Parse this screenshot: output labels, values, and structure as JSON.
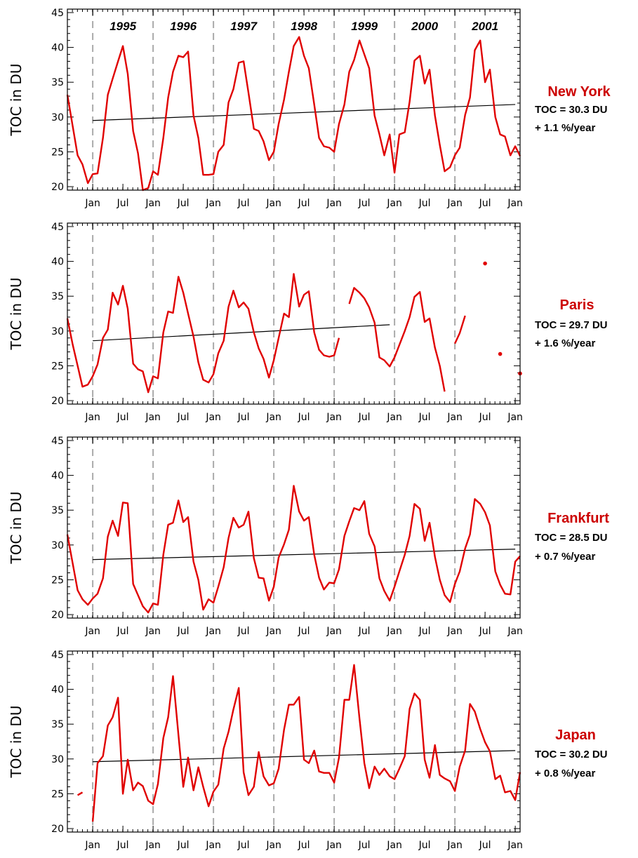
{
  "chart_data": [
    {
      "type": "line",
      "station": "New York",
      "stat_toc": "TOC = 30.3 DU",
      "stat_trend": "+ 1.1 %/year",
      "ylabel": "TOC in DU",
      "ylim": [
        19.5,
        45.5
      ],
      "yticks": [
        20,
        25,
        30,
        35,
        40,
        45
      ],
      "xlim": [
        1994.58,
        2002.08
      ],
      "year_labels": [
        "1995",
        "1996",
        "1997",
        "1998",
        "1999",
        "2000",
        "2001"
      ],
      "xtick_labels": [
        "Jan",
        "Jul",
        "Jan",
        "Jul",
        "Jan",
        "Jul",
        "Jan",
        "Jul",
        "Jan",
        "Jul",
        "Jan",
        "Jul",
        "Jan",
        "Jul",
        "Jan"
      ],
      "line_color": "#e00000",
      "trend": {
        "x": [
          1995.0,
          2002.0
        ],
        "y": [
          29.5,
          31.8
        ]
      },
      "segments": [
        {
          "x": [
            1994.58,
            1994.75,
            1994.83,
            1994.92,
            1995.0,
            1995.08,
            1995.17,
            1995.25,
            1995.33,
            1995.42,
            1995.5,
            1995.58,
            1995.67,
            1995.75,
            1995.83,
            1995.92,
            1996.0,
            1996.08,
            1996.17,
            1996.25,
            1996.33,
            1996.42,
            1996.5,
            1996.58,
            1996.67,
            1996.75,
            1996.83,
            1996.92,
            1997.0,
            1997.08,
            1997.17,
            1997.25,
            1997.33,
            1997.42,
            1997.5,
            1997.58,
            1997.67,
            1997.75,
            1997.83,
            1997.92,
            1998.0,
            1998.08,
            1998.17,
            1998.25,
            1998.33,
            1998.42,
            1998.5,
            1998.58,
            1998.67,
            1998.75,
            1998.83,
            1998.92,
            1999.0,
            1999.08,
            1999.17,
            1999.25,
            1999.33,
            1999.42,
            1999.5,
            1999.58,
            1999.67,
            1999.75,
            1999.83,
            1999.92,
            2000.0,
            2000.08,
            2000.17,
            2000.25,
            2000.33,
            2000.42,
            2000.5,
            2000.58,
            2000.67,
            2000.75,
            2000.83,
            2000.92,
            2001.0,
            2001.08,
            2001.17,
            2001.25,
            2001.33,
            2001.42,
            2001.5,
            2001.58,
            2001.67,
            2001.75,
            2001.83,
            2001.92,
            2002.0,
            2002.08
          ],
          "y": [
            33.2,
            24.5,
            23.2,
            20.5,
            21.8,
            21.9,
            27.0,
            33.2,
            35.5,
            38.0,
            40.2,
            36.2,
            28.0,
            24.8,
            19.5,
            19.8,
            22.2,
            21.7,
            27.0,
            32.8,
            36.5,
            38.8,
            38.6,
            39.4,
            30.2,
            27.0,
            21.7,
            21.7,
            21.8,
            25.0,
            26.0,
            32.1,
            34.0,
            37.8,
            38.0,
            33.5,
            28.3,
            28.0,
            26.5,
            23.8,
            25.0,
            29.0,
            32.5,
            36.5,
            40.2,
            41.5,
            38.8,
            37.0,
            31.8,
            27.0,
            25.8,
            25.6,
            25.0,
            29.0,
            31.8,
            36.5,
            38.2,
            41.0,
            39.0,
            37.0,
            30.2,
            27.5,
            24.5,
            27.5,
            22.0,
            27.5,
            27.8,
            32.2,
            38.1,
            38.8,
            34.8,
            36.8,
            30.2,
            26.0,
            22.2,
            22.8,
            24.5,
            25.6,
            30.3,
            32.8,
            39.6,
            41.0,
            35.0,
            36.8,
            30.0,
            27.5,
            27.2,
            24.5,
            25.8,
            24.4
          ]
        }
      ],
      "points": []
    },
    {
      "type": "line",
      "station": "Paris",
      "stat_toc": "TOC = 29.7 DU",
      "stat_trend": "+ 1.6 %/year",
      "ylabel": "TOC in DU",
      "ylim": [
        19.5,
        45.5
      ],
      "yticks": [
        20,
        25,
        30,
        35,
        40,
        45
      ],
      "xlim": [
        1994.58,
        2002.08
      ],
      "xtick_labels": [
        "Jan",
        "Jul",
        "Jan",
        "Jul",
        "Jan",
        "Jul",
        "Jan",
        "Jul",
        "Jan",
        "Jul",
        "Jan",
        "Jul",
        "Jan",
        "Jul",
        "Jan"
      ],
      "line_color": "#e00000",
      "trend": {
        "x": [
          1995.0,
          1999.92
        ],
        "y": [
          28.6,
          30.9
        ]
      },
      "segments": [
        {
          "x": [
            1994.58,
            1994.67,
            1994.75,
            1994.83,
            1994.92,
            1995.0,
            1995.08,
            1995.17,
            1995.25,
            1995.33,
            1995.42,
            1995.5,
            1995.58,
            1995.67,
            1995.75,
            1995.83,
            1995.92,
            1996.0,
            1996.08,
            1996.17,
            1996.25,
            1996.33,
            1996.42,
            1996.5,
            1996.58,
            1996.67,
            1996.75,
            1996.83,
            1996.92,
            1997.0,
            1997.08,
            1997.17,
            1997.25,
            1997.33,
            1997.42,
            1997.5,
            1997.58,
            1997.67,
            1997.75,
            1997.83,
            1997.92,
            1998.0,
            1998.08,
            1998.17,
            1998.25,
            1998.33,
            1998.42,
            1998.5,
            1998.58,
            1998.67,
            1998.75,
            1998.83,
            1998.92,
            1999.0,
            1999.08
          ],
          "y": [
            31.8,
            28.0,
            25.0,
            22.0,
            22.3,
            23.5,
            25.2,
            29.0,
            30.2,
            35.5,
            33.8,
            36.5,
            33.2,
            25.3,
            24.5,
            24.2,
            21.2,
            23.5,
            23.2,
            29.8,
            32.8,
            32.6,
            37.8,
            35.5,
            32.5,
            29.2,
            25.5,
            23.0,
            22.6,
            23.8,
            26.8,
            28.6,
            33.5,
            35.8,
            33.4,
            34.1,
            33.2,
            29.8,
            27.5,
            26.0,
            23.3,
            25.8,
            29.0,
            32.5,
            32.0,
            38.2,
            33.5,
            35.2,
            35.7,
            29.8,
            27.3,
            26.5,
            26.3,
            26.5,
            29.0
          ]
        },
        {
          "x": [
            1999.25,
            1999.33,
            1999.42,
            1999.5,
            1999.58,
            1999.67,
            1999.75,
            1999.83,
            1999.92,
            2000.0,
            2000.08,
            2000.17,
            2000.25,
            2000.33,
            2000.42,
            2000.5,
            2000.58,
            2000.67,
            2000.75,
            2000.83
          ],
          "y": [
            33.9,
            36.2,
            35.5,
            34.7,
            33.4,
            31.2,
            26.2,
            25.8,
            24.9,
            26.2,
            28.0,
            30.0,
            32.0,
            34.9,
            35.6,
            31.3,
            31.8,
            27.6,
            25.0,
            21.3
          ]
        },
        {
          "x": [
            2001.0,
            2001.08,
            2001.17
          ],
          "y": [
            28.2,
            29.7,
            32.2
          ]
        }
      ],
      "points": [
        {
          "x": 2001.5,
          "y": 39.7
        },
        {
          "x": 2001.75,
          "y": 26.7
        },
        {
          "x": 2002.08,
          "y": 23.9
        }
      ]
    },
    {
      "type": "line",
      "station": "Frankfurt",
      "stat_toc": "TOC = 28.5 DU",
      "stat_trend": "+ 0.7 %/year",
      "ylabel": "TOC in DU",
      "ylim": [
        19.5,
        45.5
      ],
      "yticks": [
        20,
        25,
        30,
        35,
        40,
        45
      ],
      "xlim": [
        1994.58,
        2002.08
      ],
      "xtick_labels": [
        "Jan",
        "Jul",
        "Jan",
        "Jul",
        "Jan",
        "Jul",
        "Jan",
        "Jul",
        "Jan",
        "Jul",
        "Jan",
        "Jul",
        "Jan",
        "Jul",
        "Jan"
      ],
      "line_color": "#e00000",
      "trend": {
        "x": [
          1995.0,
          2002.0
        ],
        "y": [
          27.9,
          29.4
        ]
      },
      "segments": [
        {
          "x": [
            1994.58,
            1994.75,
            1994.83,
            1994.92,
            1995.0,
            1995.08,
            1995.17,
            1995.25,
            1995.33,
            1995.42,
            1995.5,
            1995.58,
            1995.67,
            1995.75,
            1995.83,
            1995.92,
            1996.0,
            1996.08,
            1996.17,
            1996.25,
            1996.33,
            1996.42,
            1996.5,
            1996.58,
            1996.67,
            1996.75,
            1996.83,
            1996.92,
            1997.0,
            1997.08,
            1997.17,
            1997.25,
            1997.33,
            1997.42,
            1997.5,
            1997.58,
            1997.67,
            1997.75,
            1997.83,
            1997.92,
            1998.0,
            1998.08,
            1998.17,
            1998.25,
            1998.33,
            1998.42,
            1998.5,
            1998.58,
            1998.67,
            1998.75,
            1998.83,
            1998.92,
            1999.0,
            1999.08,
            1999.17,
            1999.25,
            1999.33,
            1999.42,
            1999.5,
            1999.58,
            1999.67,
            1999.75,
            1999.83,
            1999.92,
            2000.0,
            2000.08,
            2000.17,
            2000.25,
            2000.33,
            2000.42,
            2000.5,
            2000.58,
            2000.67,
            2000.75,
            2000.83,
            2000.92,
            2001.0,
            2001.08,
            2001.17,
            2001.25,
            2001.33,
            2001.42,
            2001.5,
            2001.58,
            2001.67,
            2001.75,
            2001.83,
            2001.92,
            2002.0,
            2002.08
          ],
          "y": [
            31.5,
            23.5,
            22.2,
            21.4,
            22.3,
            23.0,
            25.2,
            31.2,
            33.5,
            31.3,
            36.1,
            36.0,
            24.4,
            22.8,
            21.2,
            20.3,
            21.6,
            21.4,
            28.6,
            32.9,
            33.2,
            36.4,
            33.3,
            34.0,
            27.6,
            25.0,
            20.7,
            22.2,
            21.7,
            24.0,
            26.8,
            31.0,
            33.9,
            32.5,
            32.9,
            34.8,
            28.1,
            25.3,
            25.2,
            22.0,
            24.0,
            28.2,
            30.1,
            32.2,
            38.5,
            34.8,
            33.5,
            34.0,
            28.6,
            25.3,
            23.6,
            24.6,
            24.5,
            26.5,
            31.3,
            33.4,
            35.3,
            35.0,
            36.3,
            31.6,
            29.8,
            25.2,
            23.4,
            22.0,
            24.0,
            26.2,
            28.6,
            31.3,
            35.9,
            35.2,
            30.6,
            33.2,
            28.3,
            25.0,
            22.8,
            21.8,
            24.4,
            26.2,
            29.5,
            31.5,
            36.6,
            35.9,
            34.7,
            32.8,
            26.2,
            24.3,
            23.0,
            22.9,
            27.6,
            28.4
          ]
        }
      ],
      "points": []
    },
    {
      "type": "line",
      "station": "Japan",
      "stat_toc": "TOC = 30.2 DU",
      "stat_trend": "+ 0.8 %/year",
      "ylabel": "TOC in DU",
      "ylim": [
        19.5,
        45.5
      ],
      "yticks": [
        20,
        25,
        30,
        35,
        40,
        45
      ],
      "xlim": [
        1994.58,
        2002.08
      ],
      "xtick_labels": [
        "Jan",
        "Jul",
        "Jan",
        "Jul",
        "Jan",
        "Jul",
        "Jan",
        "Jul",
        "Jan",
        "Jul",
        "Jan",
        "Jul",
        "Jan",
        "Jul",
        "Jan"
      ],
      "line_color": "#e00000",
      "trend": {
        "x": [
          1995.0,
          2002.0
        ],
        "y": [
          29.6,
          31.2
        ]
      },
      "segments": [
        {
          "x": [
            1994.75,
            1994.83
          ],
          "y": [
            24.8,
            25.2
          ]
        },
        {
          "x": [
            1995.0,
            1995.08,
            1995.17,
            1995.25,
            1995.33,
            1995.42,
            1995.5,
            1995.58,
            1995.67,
            1995.75,
            1995.83,
            1995.92,
            1996.0,
            1996.08,
            1996.17,
            1996.25,
            1996.33,
            1996.42,
            1996.5,
            1996.58,
            1996.67,
            1996.75,
            1996.83,
            1996.92,
            1997.0,
            1997.08,
            1997.17,
            1997.25,
            1997.33,
            1997.42,
            1997.5,
            1997.58,
            1997.67,
            1997.75,
            1997.83,
            1997.92,
            1998.0,
            1998.08,
            1998.17,
            1998.25,
            1998.33,
            1998.42,
            1998.5,
            1998.58,
            1998.67,
            1998.75,
            1998.83,
            1998.92,
            1999.0,
            1999.08,
            1999.17,
            1999.25,
            1999.33,
            1999.42,
            1999.5,
            1999.58,
            1999.67,
            1999.75,
            1999.83,
            1999.92,
            2000.0,
            2000.08,
            2000.17,
            2000.25,
            2000.33,
            2000.42,
            2000.5,
            2000.58,
            2000.67,
            2000.75,
            2000.83,
            2000.92,
            2001.0,
            2001.08,
            2001.17,
            2001.25,
            2001.33,
            2001.42,
            2001.5,
            2001.58,
            2001.67,
            2001.75,
            2001.83,
            2001.92,
            2002.0,
            2002.08
          ],
          "y": [
            21.0,
            29.4,
            30.4,
            34.8,
            36.0,
            38.8,
            25.0,
            29.9,
            25.5,
            26.6,
            26.1,
            24.0,
            23.5,
            26.4,
            33.0,
            36.0,
            41.9,
            33.5,
            26.0,
            30.2,
            25.5,
            28.8,
            26.0,
            23.2,
            25.3,
            26.3,
            31.5,
            33.9,
            37.1,
            40.2,
            28.1,
            24.8,
            26.0,
            31.0,
            27.5,
            26.2,
            26.5,
            28.6,
            34.2,
            37.8,
            37.8,
            38.9,
            29.9,
            29.4,
            31.2,
            28.2,
            28.0,
            28.0,
            26.6,
            30.2,
            38.5,
            38.5,
            43.5,
            35.8,
            29.4,
            25.8,
            28.9,
            27.7,
            28.6,
            27.5,
            27.1,
            28.6,
            30.4,
            37.2,
            39.4,
            38.5,
            29.9,
            27.3,
            32.0,
            27.7,
            27.2,
            26.8,
            25.4,
            28.9,
            31.2,
            37.9,
            36.8,
            34.3,
            32.4,
            31.1,
            27.1,
            27.6,
            25.2,
            25.4,
            24.1,
            28.1
          ]
        }
      ],
      "points": []
    }
  ]
}
